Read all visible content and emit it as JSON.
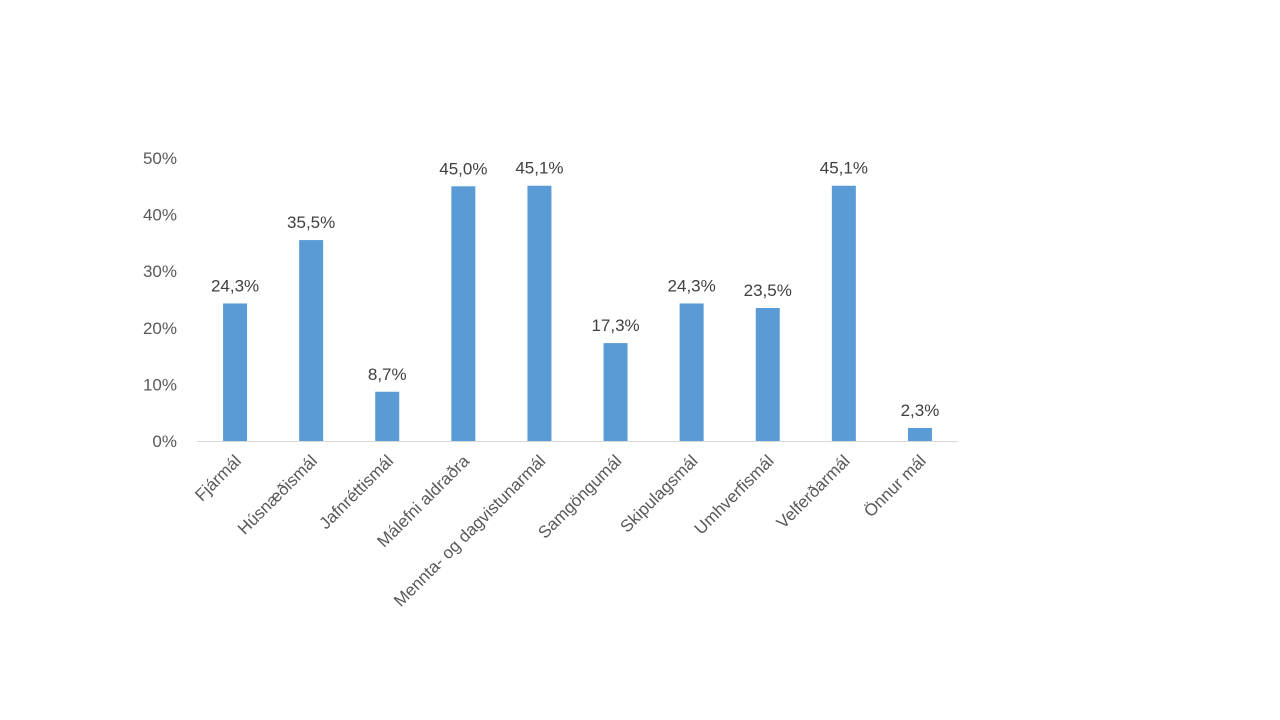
{
  "chart_data": {
    "type": "bar",
    "categories": [
      "Fjármál",
      "Húsnæðismál",
      "Jafnréttismál",
      "Málefni aldraðra",
      "Mennta- og dagvistunarmál",
      "Samgöngumál",
      "Skipulagsmál",
      "Umhverfismál",
      "Velferðarmál",
      "Önnur mál"
    ],
    "values": [
      24.3,
      35.5,
      8.7,
      45.0,
      45.1,
      17.3,
      24.3,
      23.5,
      45.1,
      2.3
    ],
    "data_labels": [
      "24,3%",
      "35,5%",
      "8,7%",
      "45,0%",
      "45,1%",
      "17,3%",
      "24,3%",
      "23,5%",
      "45,1%",
      "2,3%"
    ],
    "y_ticks": [
      0,
      10,
      20,
      30,
      40,
      50
    ],
    "y_tick_labels": [
      "0%",
      "10%",
      "20%",
      "30%",
      "40%",
      "50%"
    ],
    "ylim": [
      0,
      50
    ],
    "title": "",
    "xlabel": "",
    "ylabel": "",
    "grid": false,
    "legend": "none",
    "bar_color": "#5b9bd5",
    "axis_color": "#d9d9d9"
  }
}
